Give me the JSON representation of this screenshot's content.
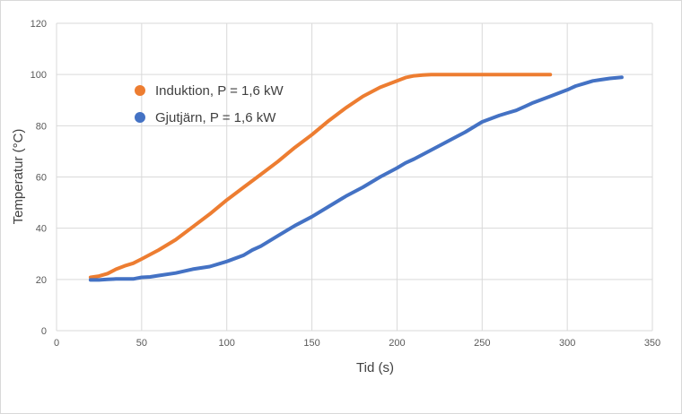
{
  "chart_data": {
    "type": "line",
    "xlabel": "Tid (s)",
    "ylabel": "Temperatur (°C)",
    "xlim": [
      0,
      350
    ],
    "ylim": [
      0,
      120
    ],
    "xticks": [
      "0",
      "50",
      "100",
      "150",
      "200",
      "250",
      "300",
      "350"
    ],
    "yticks": [
      "0",
      "20",
      "40",
      "60",
      "80",
      "100",
      "120"
    ],
    "grid": true,
    "legend_position": "upper-left inside plot",
    "series": [
      {
        "name": "Induktion, P = 1,6 kW",
        "color": "#ED7D31",
        "x": [
          20,
          25,
          30,
          35,
          40,
          45,
          50,
          60,
          70,
          80,
          90,
          100,
          110,
          120,
          130,
          140,
          150,
          160,
          170,
          180,
          190,
          200,
          205,
          210,
          215,
          220,
          230,
          240,
          250,
          260,
          270,
          280,
          290
        ],
        "y": [
          20.8,
          21.3,
          22.3,
          24,
          25.3,
          26.3,
          28,
          31.5,
          35.5,
          40.5,
          45.5,
          51,
          56,
          61,
          66,
          71.5,
          76.5,
          82,
          87,
          91.5,
          95,
          97.5,
          98.8,
          99.5,
          99.8,
          100,
          100,
          100,
          100,
          100,
          100,
          100,
          100
        ]
      },
      {
        "name": "Gjutjärn, P = 1,6 kW",
        "color": "#4472C4",
        "x": [
          20,
          25,
          30,
          35,
          40,
          45,
          50,
          55,
          60,
          70,
          80,
          90,
          100,
          110,
          115,
          120,
          130,
          140,
          150,
          160,
          170,
          180,
          190,
          200,
          205,
          210,
          220,
          230,
          240,
          250,
          260,
          265,
          270,
          275,
          280,
          290,
          300,
          305,
          310,
          315,
          320,
          325,
          330,
          332
        ],
        "y": [
          19.8,
          19.8,
          20,
          20.2,
          20.2,
          20.2,
          20.8,
          21,
          21.5,
          22.5,
          24,
          25,
          27,
          29.5,
          31.5,
          33,
          37,
          41,
          44.5,
          48.5,
          52.5,
          56,
          60,
          63.5,
          65.5,
          67,
          70.5,
          74,
          77.5,
          81.5,
          84,
          85,
          86,
          87.5,
          89,
          91.5,
          94,
          95.5,
          96.5,
          97.5,
          98,
          98.5,
          98.8,
          98.9
        ]
      }
    ]
  }
}
